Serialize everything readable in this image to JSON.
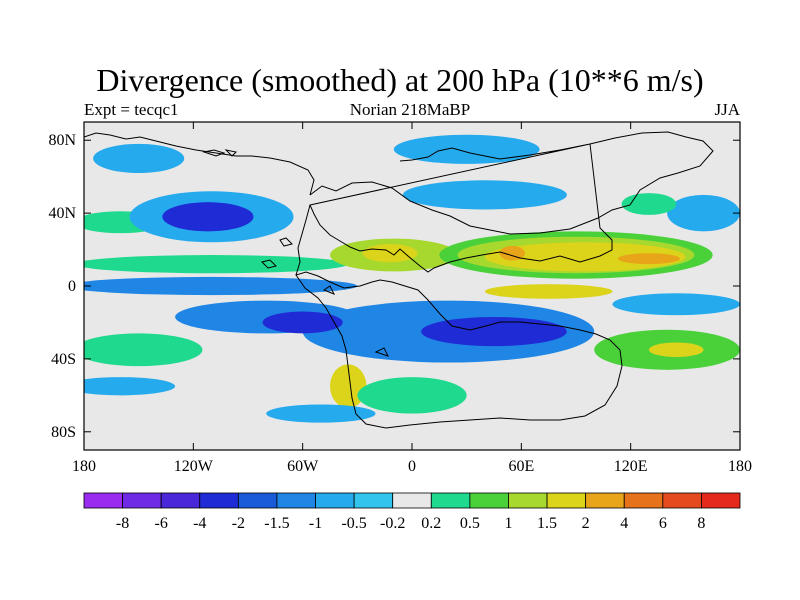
{
  "chart_data": {
    "type": "heatmap",
    "title": "Divergence (smoothed) at 200 hPa (10**6 m/s)",
    "left_label": "Expt = tecqc1",
    "center_label": "Norian 218MaBP",
    "right_label": "JJA",
    "x_ticks": [
      {
        "value": -180,
        "label": "180"
      },
      {
        "value": -120,
        "label": "120W"
      },
      {
        "value": -60,
        "label": "60W"
      },
      {
        "value": 0,
        "label": "0"
      },
      {
        "value": 60,
        "label": "60E"
      },
      {
        "value": 120,
        "label": "120E"
      },
      {
        "value": 180,
        "label": "180"
      }
    ],
    "y_ticks": [
      {
        "value": 80,
        "label": "80N"
      },
      {
        "value": 40,
        "label": "40N"
      },
      {
        "value": 0,
        "label": "0"
      },
      {
        "value": -40,
        "label": "40S"
      },
      {
        "value": -80,
        "label": "80S"
      }
    ],
    "xlim": [
      -180,
      180
    ],
    "ylim": [
      -90,
      90
    ],
    "colorbar": {
      "labels": [
        "-8",
        "-6",
        "-4",
        "-2",
        "-1.5",
        "-1",
        "-0.5",
        "-0.2",
        "0.2",
        "0.5",
        "1",
        "1.5",
        "2",
        "4",
        "6",
        "8"
      ],
      "colors": [
        "#9a2cf0",
        "#6f2ae6",
        "#4a28da",
        "#1f2bd4",
        "#1a5bd9",
        "#1f86e6",
        "#26aaee",
        "#33c4ee",
        "#e8e8e8",
        "#1ed98e",
        "#4ad13a",
        "#a6d82e",
        "#dcd31b",
        "#e8a51a",
        "#e6721c",
        "#e54a1e",
        "#e42a1d"
      ]
    },
    "regions": [
      {
        "name": "north-pacific-blue",
        "cx": -150,
        "cy": 70,
        "rx": 25,
        "ry": 8,
        "level": -0.5
      },
      {
        "name": "north-pacific-green",
        "cx": -160,
        "cy": 35,
        "rx": 25,
        "ry": 6,
        "level": 0.5
      },
      {
        "name": "eastern-pacific-blue",
        "cx": -110,
        "cy": 38,
        "rx": 45,
        "ry": 14,
        "level": -0.5
      },
      {
        "name": "eastern-pacific-core",
        "cx": -112,
        "cy": 38,
        "rx": 25,
        "ry": 8,
        "level": -2
      },
      {
        "name": "tropical-pacific-green-band",
        "cx": -110,
        "cy": 12,
        "rx": 75,
        "ry": 5,
        "level": 0.5
      },
      {
        "name": "tropical-pacific-blue-band",
        "cx": -110,
        "cy": 0,
        "rx": 80,
        "ry": 5,
        "level": -1
      },
      {
        "name": "central-atlantic-orange",
        "cx": -10,
        "cy": 17,
        "rx": 35,
        "ry": 9,
        "level": 1.5
      },
      {
        "name": "central-atlantic-core",
        "cx": -12,
        "cy": 18,
        "rx": 15,
        "ry": 5,
        "level": 2
      },
      {
        "name": "tethys-green",
        "cx": 90,
        "cy": 17,
        "rx": 75,
        "ry": 13,
        "level": 1
      },
      {
        "name": "tethys-yellow",
        "cx": 90,
        "cy": 17,
        "rx": 65,
        "ry": 10,
        "level": 1.5
      },
      {
        "name": "tethys-orange",
        "cx": 95,
        "cy": 16,
        "rx": 55,
        "ry": 8,
        "level": 2
      },
      {
        "name": "tethys-west-core",
        "cx": 55,
        "cy": 18,
        "rx": 7,
        "ry": 4,
        "level": 4
      },
      {
        "name": "tethys-east-core",
        "cx": 130,
        "cy": 15,
        "rx": 17,
        "ry": 3,
        "level": 4
      },
      {
        "name": "equatorial-orange",
        "cx": 75,
        "cy": -3,
        "rx": 35,
        "ry": 4,
        "level": 2
      },
      {
        "name": "pangaea-south-blue",
        "cx": 20,
        "cy": -25,
        "rx": 80,
        "ry": 17,
        "level": -1
      },
      {
        "name": "pangaea-south-core",
        "cx": 45,
        "cy": -25,
        "rx": 40,
        "ry": 8,
        "level": -2
      },
      {
        "name": "southwest-blue",
        "cx": -80,
        "cy": -17,
        "rx": 50,
        "ry": 9,
        "level": -1
      },
      {
        "name": "southwest-core",
        "cx": -60,
        "cy": -20,
        "rx": 22,
        "ry": 6,
        "level": -2
      },
      {
        "name": "south-pacific-green",
        "cx": -150,
        "cy": -35,
        "rx": 35,
        "ry": 9,
        "level": 0.5
      },
      {
        "name": "south-pacific-blue",
        "cx": -160,
        "cy": -55,
        "rx": 30,
        "ry": 5,
        "level": -0.5
      },
      {
        "name": "south-atlantic-orange",
        "cx": -35,
        "cy": -55,
        "rx": 10,
        "ry": 12,
        "level": 2
      },
      {
        "name": "south-ocean-green",
        "cx": 0,
        "cy": -60,
        "rx": 30,
        "ry": 10,
        "level": 0.5
      },
      {
        "name": "southeast-green",
        "cx": 140,
        "cy": -35,
        "rx": 40,
        "ry": 11,
        "level": 1
      },
      {
        "name": "southeast-orange",
        "cx": 145,
        "cy": -35,
        "rx": 15,
        "ry": 4,
        "level": 2
      },
      {
        "name": "east-blue",
        "cx": 145,
        "cy": -10,
        "rx": 35,
        "ry": 6,
        "level": -0.5
      },
      {
        "name": "far-east-blue",
        "cx": 160,
        "cy": 40,
        "rx": 20,
        "ry": 10,
        "level": -0.5
      },
      {
        "name": "asia-north-green",
        "cx": 130,
        "cy": 45,
        "rx": 15,
        "ry": 6,
        "level": 0.5
      },
      {
        "name": "arctic-blue",
        "cx": 30,
        "cy": 75,
        "rx": 40,
        "ry": 8,
        "level": -0.5
      },
      {
        "name": "europe-blue",
        "cx": 40,
        "cy": 50,
        "rx": 45,
        "ry": 8,
        "level": -0.5
      },
      {
        "name": "south-america-south-blue",
        "cx": -50,
        "cy": -70,
        "rx": 30,
        "ry": 5,
        "level": -0.5
      }
    ]
  }
}
